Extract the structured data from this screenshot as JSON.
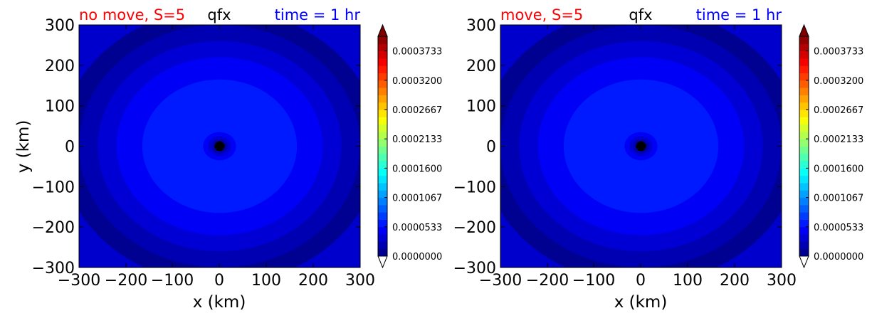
{
  "chart_data": [
    {
      "type": "heatmap",
      "title_left": "no move, S=5",
      "title_center": "qfx",
      "title_right": "time = 1 hr",
      "xlabel": "x (km)",
      "ylabel": "y (km)",
      "xlim": [
        -300,
        300
      ],
      "ylim": [
        -300,
        300
      ],
      "xticks": [
        "−300",
        "−200",
        "−100",
        "0",
        "100",
        "200",
        "300"
      ],
      "yticks": [
        "300",
        "200",
        "100",
        "0",
        "−100",
        "−200",
        "−300"
      ],
      "colorbar": {
        "min": 0.0,
        "max": 0.0004,
        "levels": 30,
        "extend": "both",
        "tick_labels": [
          "0.0003733",
          "0.0003200",
          "0.0002667",
          "0.0002133",
          "0.0001600",
          "0.0001067",
          "0.0000533",
          "0.0000000"
        ],
        "tick_values": [
          0.0003733,
          0.00032,
          0.0002667,
          0.0002133,
          0.00016,
          0.0001067,
          5.33e-05,
          0.0
        ]
      },
      "contour_rings": [
        {
          "radius_km": 340,
          "value": 7e-06
        },
        {
          "radius_km": 300,
          "value": 2e-05
        },
        {
          "radius_km": 260,
          "value": 3.3e-05
        },
        {
          "radius_km": 220,
          "value": 4.7e-05
        },
        {
          "radius_km": 165,
          "value": 6e-05
        },
        {
          "radius_km": 35,
          "value": 4.7e-05
        },
        {
          "radius_km": 25,
          "value": 3.3e-05
        },
        {
          "radius_km": 18,
          "value": 2e-05
        },
        {
          "radius_km": 12,
          "value": 7e-06
        }
      ],
      "center_marker": {
        "x": 0,
        "y": 0
      }
    },
    {
      "type": "heatmap",
      "title_left": "move, S=5",
      "title_center": "qfx",
      "title_right": "time = 1 hr",
      "xlabel": "x (km)",
      "ylabel": "",
      "xlim": [
        -300,
        300
      ],
      "ylim": [
        -300,
        300
      ],
      "xticks": [
        "−300",
        "−200",
        "−100",
        "0",
        "100",
        "200",
        "300"
      ],
      "yticks": [
        "300",
        "200",
        "100",
        "0",
        "−100",
        "−200",
        "−300"
      ],
      "colorbar": {
        "min": 0.0,
        "max": 0.0004,
        "levels": 30,
        "extend": "both",
        "tick_labels": [
          "0.0003733",
          "0.0003200",
          "0.0002667",
          "0.0002133",
          "0.0001600",
          "0.0001067",
          "0.0000533",
          "0.0000000"
        ],
        "tick_values": [
          0.0003733,
          0.00032,
          0.0002667,
          0.0002133,
          0.00016,
          0.0001067,
          5.33e-05,
          0.0
        ]
      },
      "contour_rings": [
        {
          "radius_km": 340,
          "value": 7e-06
        },
        {
          "radius_km": 300,
          "value": 2e-05
        },
        {
          "radius_km": 260,
          "value": 3.3e-05
        },
        {
          "radius_km": 220,
          "value": 4.7e-05
        },
        {
          "radius_km": 165,
          "value": 6e-05
        },
        {
          "radius_km": 35,
          "value": 4.7e-05
        },
        {
          "radius_km": 25,
          "value": 3.3e-05
        },
        {
          "radius_km": 18,
          "value": 2e-05
        },
        {
          "radius_km": 12,
          "value": 7e-06
        }
      ],
      "center_marker": {
        "x": 0,
        "y": 0
      }
    }
  ],
  "colors": {
    "title_left": "#ff0000",
    "title_center": "#000000",
    "title_right": "#0000ff"
  }
}
